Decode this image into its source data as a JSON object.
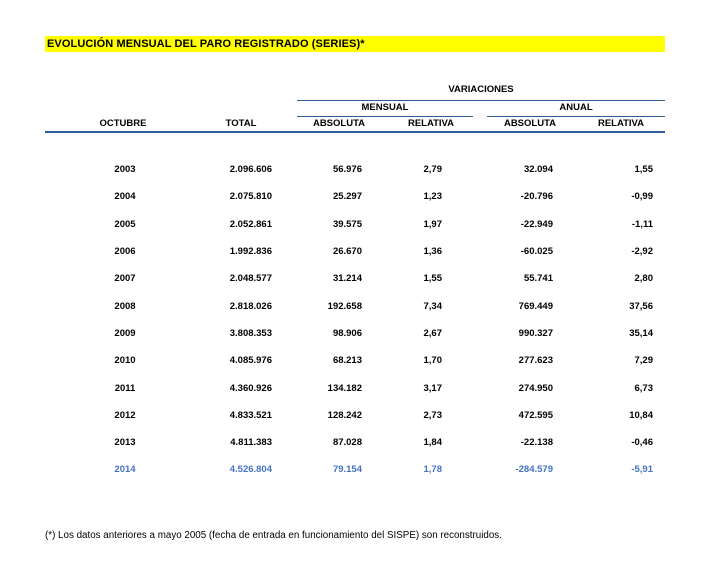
{
  "title": "EVOLUCIÓN MENSUAL DEL PARO REGISTRADO (SERIES)*",
  "colors": {
    "title_highlight": "#FFFF00",
    "rule_blue": "#2F5D9E",
    "current_year_blue": "#4472C4"
  },
  "table": {
    "group_header": "VARIACIONES",
    "subgroup_mensual": "MENSUAL",
    "subgroup_anual": "ANUAL",
    "col_year": "OCTUBRE",
    "col_total": "TOTAL",
    "col_absoluta_mensual": "ABSOLUTA",
    "col_relativa_mensual": "RELATIVA",
    "col_absoluta_anual": "ABSOLUTA",
    "col_relativa_anual": "RELATIVA",
    "rows": [
      {
        "year": "2003",
        "total": "2.096.606",
        "abs_m": "56.976",
        "rel_m": "2,79",
        "abs_a": "32.094",
        "rel_a": "1,55",
        "current": false
      },
      {
        "year": "2004",
        "total": "2.075.810",
        "abs_m": "25.297",
        "rel_m": "1,23",
        "abs_a": "-20.796",
        "rel_a": "-0,99",
        "current": false
      },
      {
        "year": "2005",
        "total": "2.052.861",
        "abs_m": "39.575",
        "rel_m": "1,97",
        "abs_a": "-22.949",
        "rel_a": "-1,11",
        "current": false
      },
      {
        "year": "2006",
        "total": "1.992.836",
        "abs_m": "26.670",
        "rel_m": "1,36",
        "abs_a": "-60.025",
        "rel_a": "-2,92",
        "current": false
      },
      {
        "year": "2007",
        "total": "2.048.577",
        "abs_m": "31.214",
        "rel_m": "1,55",
        "abs_a": "55.741",
        "rel_a": "2,80",
        "current": false
      },
      {
        "year": "2008",
        "total": "2.818.026",
        "abs_m": "192.658",
        "rel_m": "7,34",
        "abs_a": "769.449",
        "rel_a": "37,56",
        "current": false
      },
      {
        "year": "2009",
        "total": "3.808.353",
        "abs_m": "98.906",
        "rel_m": "2,67",
        "abs_a": "990.327",
        "rel_a": "35,14",
        "current": false
      },
      {
        "year": "2010",
        "total": "4.085.976",
        "abs_m": "68.213",
        "rel_m": "1,70",
        "abs_a": "277.623",
        "rel_a": "7,29",
        "current": false
      },
      {
        "year": "2011",
        "total": "4.360.926",
        "abs_m": "134.182",
        "rel_m": "3,17",
        "abs_a": "274.950",
        "rel_a": "6,73",
        "current": false
      },
      {
        "year": "2012",
        "total": "4.833.521",
        "abs_m": "128.242",
        "rel_m": "2,73",
        "abs_a": "472.595",
        "rel_a": "10,84",
        "current": false
      },
      {
        "year": "2013",
        "total": "4.811.383",
        "abs_m": "87.028",
        "rel_m": "1,84",
        "abs_a": "-22.138",
        "rel_a": "-0,46",
        "current": false
      },
      {
        "year": "2014",
        "total": "4.526.804",
        "abs_m": "79.154",
        "rel_m": "1,78",
        "abs_a": "-284.579",
        "rel_a": "-5,91",
        "current": true
      }
    ]
  },
  "footnote": "(*) Los datos anteriores a mayo 2005 (fecha de entrada en funcionamiento del SISPE) son reconstruidos."
}
